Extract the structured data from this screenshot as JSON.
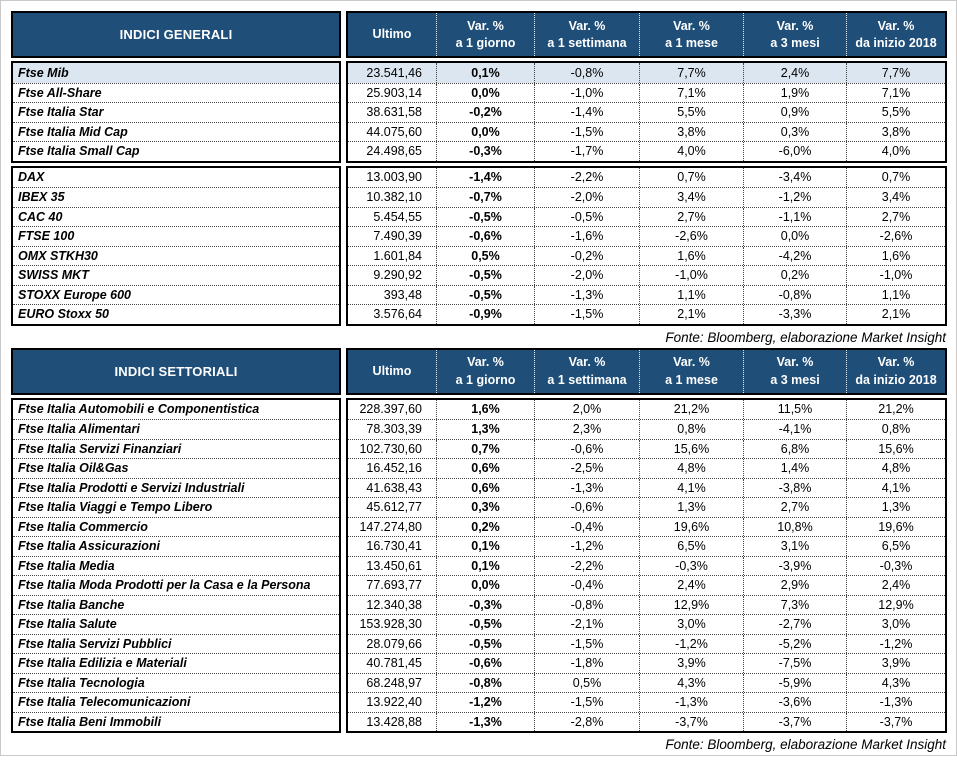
{
  "colors": {
    "header_bg": "#1F4E79",
    "header_text": "#FFFFFF",
    "highlight_row": "#DCE6F1",
    "border": "#000000"
  },
  "source_note": "Fonte: Bloomberg, elaborazione Market Insight",
  "columns": {
    "ultimo": "Ultimo",
    "vars": [
      {
        "line1": "Var. %",
        "line2": "a 1 giorno"
      },
      {
        "line1": "Var. %",
        "line2": "a 1 settimana"
      },
      {
        "line1": "Var. %",
        "line2": "a 1 mese"
      },
      {
        "line1": "Var. %",
        "line2": "a 3 mesi"
      },
      {
        "line1": "Var. %",
        "line2": "da inizio 2018"
      }
    ]
  },
  "tables": [
    {
      "title": "INDICI GENERALI",
      "groups": [
        {
          "rows": [
            {
              "name": "Ftse Mib",
              "ultimo": "23.541,46",
              "var_1d": "0,1%",
              "var_1w": "-0,8%",
              "var_1m": "7,7%",
              "var_3m": "2,4%",
              "var_ytd": "7,7%",
              "highlight": true
            },
            {
              "name": "Ftse All-Share",
              "ultimo": "25.903,14",
              "var_1d": "0,0%",
              "var_1w": "-1,0%",
              "var_1m": "7,1%",
              "var_3m": "1,9%",
              "var_ytd": "7,1%"
            },
            {
              "name": "Ftse Italia Star",
              "ultimo": "38.631,58",
              "var_1d": "-0,2%",
              "var_1w": "-1,4%",
              "var_1m": "5,5%",
              "var_3m": "0,9%",
              "var_ytd": "5,5%"
            },
            {
              "name": "Ftse Italia Mid Cap",
              "ultimo": "44.075,60",
              "var_1d": "0,0%",
              "var_1w": "-1,5%",
              "var_1m": "3,8%",
              "var_3m": "0,3%",
              "var_ytd": "3,8%"
            },
            {
              "name": "Ftse Italia Small Cap",
              "ultimo": "24.498,65",
              "var_1d": "-0,3%",
              "var_1w": "-1,7%",
              "var_1m": "4,0%",
              "var_3m": "-6,0%",
              "var_ytd": "4,0%"
            }
          ]
        },
        {
          "rows": [
            {
              "name": "DAX",
              "ultimo": "13.003,90",
              "var_1d": "-1,4%",
              "var_1w": "-2,2%",
              "var_1m": "0,7%",
              "var_3m": "-3,4%",
              "var_ytd": "0,7%"
            },
            {
              "name": "IBEX 35",
              "ultimo": "10.382,10",
              "var_1d": "-0,7%",
              "var_1w": "-2,0%",
              "var_1m": "3,4%",
              "var_3m": "-1,2%",
              "var_ytd": "3,4%"
            },
            {
              "name": "CAC 40",
              "ultimo": "5.454,55",
              "var_1d": "-0,5%",
              "var_1w": "-0,5%",
              "var_1m": "2,7%",
              "var_3m": "-1,1%",
              "var_ytd": "2,7%"
            },
            {
              "name": "FTSE 100",
              "ultimo": "7.490,39",
              "var_1d": "-0,6%",
              "var_1w": "-1,6%",
              "var_1m": "-2,6%",
              "var_3m": "0,0%",
              "var_ytd": "-2,6%"
            },
            {
              "name": "OMX STKH30",
              "ultimo": "1.601,84",
              "var_1d": "0,5%",
              "var_1w": "-0,2%",
              "var_1m": "1,6%",
              "var_3m": "-4,2%",
              "var_ytd": "1,6%"
            },
            {
              "name": "SWISS MKT",
              "ultimo": "9.290,92",
              "var_1d": "-0,5%",
              "var_1w": "-2,0%",
              "var_1m": "-1,0%",
              "var_3m": "0,2%",
              "var_ytd": "-1,0%"
            },
            {
              "name": "STOXX Europe 600",
              "ultimo": "393,48",
              "var_1d": "-0,5%",
              "var_1w": "-1,3%",
              "var_1m": "1,1%",
              "var_3m": "-0,8%",
              "var_ytd": "1,1%"
            },
            {
              "name": "EURO Stoxx 50",
              "ultimo": "3.576,64",
              "var_1d": "-0,9%",
              "var_1w": "-1,5%",
              "var_1m": "2,1%",
              "var_3m": "-3,3%",
              "var_ytd": "2,1%"
            }
          ]
        }
      ]
    },
    {
      "title": "INDICI SETTORIALI",
      "groups": [
        {
          "rows": [
            {
              "name": "Ftse Italia Automobili e Componentistica",
              "ultimo": "228.397,60",
              "var_1d": "1,6%",
              "var_1w": "2,0%",
              "var_1m": "21,2%",
              "var_3m": "11,5%",
              "var_ytd": "21,2%"
            },
            {
              "name": "Ftse Italia Alimentari",
              "ultimo": "78.303,39",
              "var_1d": "1,3%",
              "var_1w": "2,3%",
              "var_1m": "0,8%",
              "var_3m": "-4,1%",
              "var_ytd": "0,8%"
            },
            {
              "name": "Ftse Italia Servizi Finanziari",
              "ultimo": "102.730,60",
              "var_1d": "0,7%",
              "var_1w": "-0,6%",
              "var_1m": "15,6%",
              "var_3m": "6,8%",
              "var_ytd": "15,6%"
            },
            {
              "name": "Ftse Italia Oil&Gas",
              "ultimo": "16.452,16",
              "var_1d": "0,6%",
              "var_1w": "-2,5%",
              "var_1m": "4,8%",
              "var_3m": "1,4%",
              "var_ytd": "4,8%"
            },
            {
              "name": "Ftse Italia Prodotti e Servizi Industriali",
              "ultimo": "41.638,43",
              "var_1d": "0,6%",
              "var_1w": "-1,3%",
              "var_1m": "4,1%",
              "var_3m": "-3,8%",
              "var_ytd": "4,1%"
            },
            {
              "name": "Ftse Italia Viaggi e Tempo Libero",
              "ultimo": "45.612,77",
              "var_1d": "0,3%",
              "var_1w": "-0,6%",
              "var_1m": "1,3%",
              "var_3m": "2,7%",
              "var_ytd": "1,3%"
            },
            {
              "name": "Ftse Italia Commercio",
              "ultimo": "147.274,80",
              "var_1d": "0,2%",
              "var_1w": "-0,4%",
              "var_1m": "19,6%",
              "var_3m": "10,8%",
              "var_ytd": "19,6%"
            },
            {
              "name": "Ftse Italia Assicurazioni",
              "ultimo": "16.730,41",
              "var_1d": "0,1%",
              "var_1w": "-1,2%",
              "var_1m": "6,5%",
              "var_3m": "3,1%",
              "var_ytd": "6,5%"
            },
            {
              "name": "Ftse Italia Media",
              "ultimo": "13.450,61",
              "var_1d": "0,1%",
              "var_1w": "-2,2%",
              "var_1m": "-0,3%",
              "var_3m": "-3,9%",
              "var_ytd": "-0,3%"
            },
            {
              "name": "Ftse Italia Moda Prodotti per la Casa e la Persona",
              "ultimo": "77.693,77",
              "var_1d": "0,0%",
              "var_1w": "-0,4%",
              "var_1m": "2,4%",
              "var_3m": "2,9%",
              "var_ytd": "2,4%"
            },
            {
              "name": "Ftse Italia Banche",
              "ultimo": "12.340,38",
              "var_1d": "-0,3%",
              "var_1w": "-0,8%",
              "var_1m": "12,9%",
              "var_3m": "7,3%",
              "var_ytd": "12,9%"
            },
            {
              "name": "Ftse Italia Salute",
              "ultimo": "153.928,30",
              "var_1d": "-0,5%",
              "var_1w": "-2,1%",
              "var_1m": "3,0%",
              "var_3m": "-2,7%",
              "var_ytd": "3,0%"
            },
            {
              "name": "Ftse Italia Servizi Pubblici",
              "ultimo": "28.079,66",
              "var_1d": "-0,5%",
              "var_1w": "-1,5%",
              "var_1m": "-1,2%",
              "var_3m": "-5,2%",
              "var_ytd": "-1,2%"
            },
            {
              "name": "Ftse Italia Edilizia e Materiali",
              "ultimo": "40.781,45",
              "var_1d": "-0,6%",
              "var_1w": "-1,8%",
              "var_1m": "3,9%",
              "var_3m": "-7,5%",
              "var_ytd": "3,9%"
            },
            {
              "name": "Ftse Italia Tecnologia",
              "ultimo": "68.248,97",
              "var_1d": "-0,8%",
              "var_1w": "0,5%",
              "var_1m": "4,3%",
              "var_3m": "-5,9%",
              "var_ytd": "4,3%"
            },
            {
              "name": "Ftse Italia Telecomunicazioni",
              "ultimo": "13.922,40",
              "var_1d": "-1,2%",
              "var_1w": "-1,5%",
              "var_1m": "-1,3%",
              "var_3m": "-3,6%",
              "var_ytd": "-1,3%"
            },
            {
              "name": "Ftse Italia Beni Immobili",
              "ultimo": "13.428,88",
              "var_1d": "-1,3%",
              "var_1w": "-2,8%",
              "var_1m": "-3,7%",
              "var_3m": "-3,7%",
              "var_ytd": "-3,7%"
            }
          ]
        }
      ]
    }
  ]
}
